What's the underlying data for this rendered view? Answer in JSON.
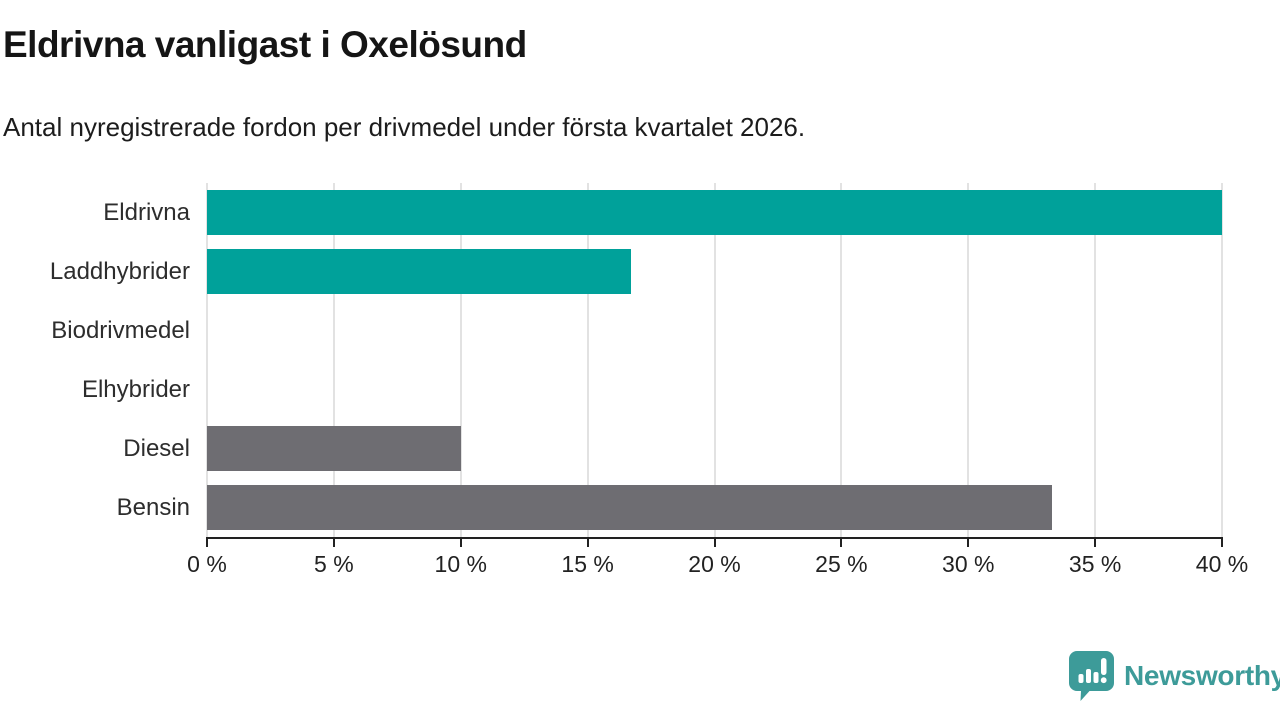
{
  "header": {
    "title": "Eldrivna vanligast i Oxelösund",
    "subtitle": "Antal nyregistrerade fordon per drivmedel under första kvartalet 2026."
  },
  "chart_data": {
    "type": "bar",
    "orientation": "horizontal",
    "categories": [
      "Eldrivna",
      "Laddhybrider",
      "Biodrivmedel",
      "Elhybrider",
      "Diesel",
      "Bensin"
    ],
    "values": [
      40,
      16.7,
      0,
      0,
      10,
      33.3
    ],
    "bar_colors": [
      "#00A19A",
      "#00A19A",
      "#00A19A",
      "#00A19A",
      "#6E6D72",
      "#6E6D72"
    ],
    "title": "Eldrivna vanligast i Oxelösund",
    "subtitle": "Antal nyregistrerade fordon per drivmedel under första kvartalet 2026.",
    "xlabel": "",
    "ylabel": "",
    "xlim": [
      0,
      40
    ],
    "x_ticks": [
      0,
      5,
      10,
      15,
      20,
      25,
      30,
      35,
      40
    ],
    "x_tick_labels": [
      "0 %",
      "5 %",
      "10 %",
      "15 %",
      "20 %",
      "25 %",
      "30 %",
      "35 %",
      "40 %"
    ],
    "grid": true,
    "legend": false,
    "accent_color": "#00A19A",
    "neutral_color": "#6E6D72",
    "gridline_color": "#e2e2e2",
    "axis_color": "#222222"
  },
  "footer": {
    "brand": "Newsworthy",
    "brand_color": "#3D9B99",
    "logo_icon": "speech-bubble-bar-chart-icon"
  }
}
